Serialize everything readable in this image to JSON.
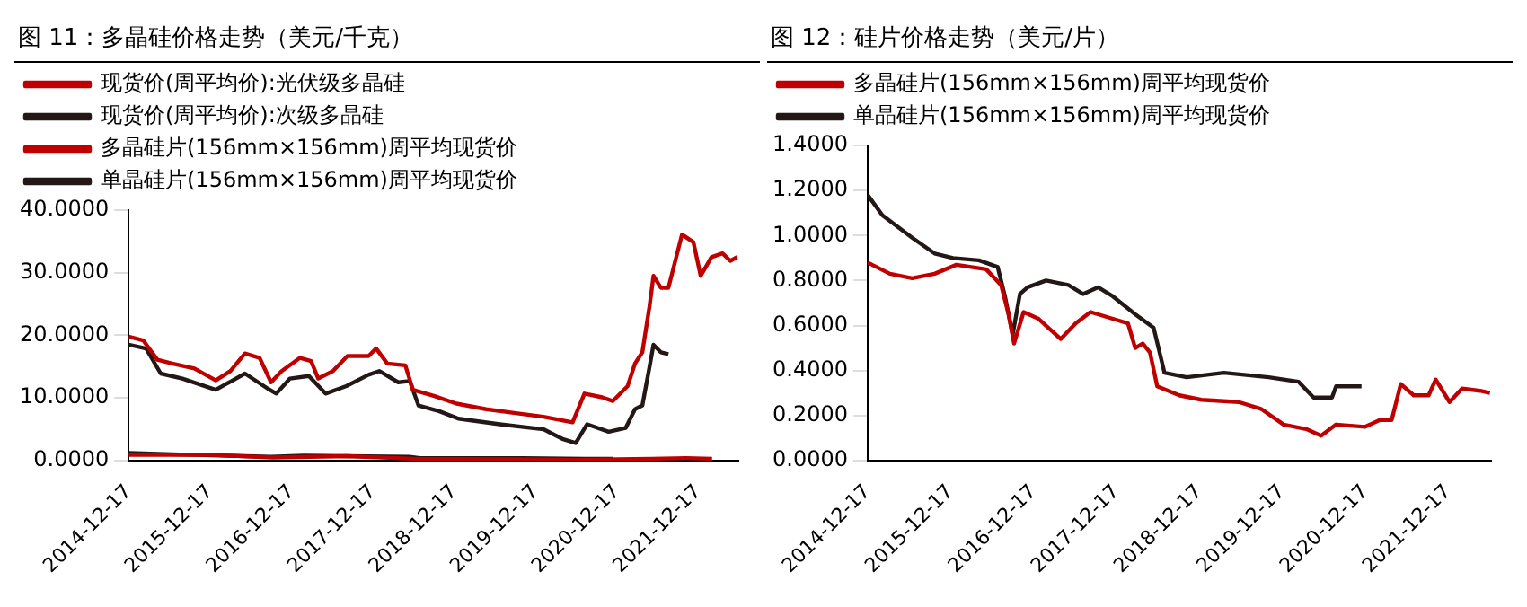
{
  "chart_data": [
    {
      "type": "line",
      "title": "图 11：多晶硅价格走势（美元/千克）",
      "legend": "top",
      "grid": false,
      "marker": "none",
      "line_style": "solid",
      "xlim": [
        "2014-12-17",
        "2022-06-15"
      ],
      "xticks": [
        "2014-12-17",
        "2015-12-17",
        "2016-12-17",
        "2017-12-17",
        "2018-12-17",
        "2019-12-17",
        "2020-12-17",
        "2021-12-17"
      ],
      "ylim": [
        0,
        40
      ],
      "yticks": [
        {
          "value": 0,
          "label": "0.0000"
        },
        {
          "value": 10,
          "label": "10.0000"
        },
        {
          "value": 20,
          "label": "20.0000"
        },
        {
          "value": 30,
          "label": "30.0000"
        },
        {
          "value": 40,
          "label": "40.0000"
        }
      ],
      "series": [
        {
          "name": "现货价(周平均价):光伏级多晶硅",
          "color": "#c00000",
          "x": [
            "2014-12-17",
            "2015-02-20",
            "2015-04-25",
            "2015-07-01",
            "2015-10-08",
            "2016-01-12",
            "2016-03-18",
            "2016-05-22",
            "2016-07-27",
            "2016-09-16",
            "2016-11-03",
            "2017-01-24",
            "2017-03-15",
            "2017-04-16",
            "2017-06-21",
            "2017-08-25",
            "2017-11-28",
            "2018-01-01",
            "2018-02-20",
            "2018-05-12",
            "2018-06-15",
            "2018-09-20",
            "2018-12-27",
            "2019-05-10",
            "2019-09-12",
            "2020-01-22",
            "2020-06-01",
            "2020-07-24",
            "2020-10-12",
            "2020-11-28",
            "2021-02-03",
            "2021-03-08",
            "2021-04-10",
            "2021-05-12",
            "2021-05-30",
            "2021-07-02",
            "2021-08-05",
            "2021-10-05",
            "2021-11-25",
            "2021-12-28",
            "2022-02-14",
            "2022-04-05",
            "2022-05-10",
            "2022-06-10"
          ],
          "values": [
            19.8,
            19.2,
            16.1,
            15.5,
            14.7,
            12.8,
            14.3,
            17.1,
            16.4,
            12.5,
            14.3,
            16.4,
            15.9,
            13.1,
            14.3,
            16.7,
            16.7,
            17.9,
            15.5,
            15.2,
            11.3,
            10.3,
            9.1,
            8.2,
            7.6,
            7.0,
            6.1,
            10.7,
            10.1,
            9.5,
            11.9,
            15.5,
            17.3,
            24.6,
            29.5,
            27.6,
            27.6,
            36.1,
            34.9,
            29.5,
            32.5,
            33.1,
            31.9,
            32.5
          ]
        },
        {
          "name": "现货价(周平均价):次级多晶硅",
          "color": "#231815",
          "x": [
            "2014-12-17",
            "2015-03-05",
            "2015-05-10",
            "2015-08-15",
            "2016-01-12",
            "2016-05-22",
            "2016-09-01",
            "2016-10-10",
            "2016-12-10",
            "2017-03-05",
            "2017-05-19",
            "2017-08-20",
            "2017-11-28",
            "2018-01-15",
            "2018-04-10",
            "2018-06-01",
            "2018-07-10",
            "2018-10-10",
            "2019-01-05",
            "2019-07-10",
            "2020-01-22",
            "2020-04-20",
            "2020-06-15",
            "2020-08-05",
            "2020-11-10",
            "2021-01-25",
            "2021-03-08",
            "2021-04-10",
            "2021-05-12",
            "2021-05-30",
            "2021-07-02",
            "2021-08-05"
          ],
          "values": [
            18.5,
            17.9,
            13.9,
            13.1,
            11.3,
            13.9,
            11.5,
            10.7,
            13.1,
            13.5,
            10.7,
            11.9,
            13.7,
            14.3,
            12.5,
            12.7,
            8.8,
            7.9,
            6.7,
            5.8,
            5.0,
            3.4,
            2.8,
            5.8,
            4.6,
            5.2,
            8.2,
            8.8,
            14.9,
            18.5,
            17.3,
            17.0
          ]
        },
        {
          "name": "多晶硅片(156mm×156mm)周平均现货价",
          "color": "#c00000",
          "x": [
            "2014-12-17",
            "2015-12-28",
            "2016-09-22",
            "2017-08-25",
            "2018-06-15",
            "2019-09-15",
            "2020-06-06",
            "2020-12-17",
            "2021-05-23",
            "2021-10-24",
            "2022-02-17"
          ],
          "values": [
            0.9,
            0.9,
            0.5,
            0.7,
            0.3,
            0.2,
            0.1,
            0.2,
            0.3,
            0.4,
            0.3
          ]
        },
        {
          "name": "单晶硅片(156mm×156mm)周平均现货价",
          "color": "#231815",
          "x": [
            "2014-12-17",
            "2015-10-08",
            "2016-09-16",
            "2017-02-10",
            "2018-05-30",
            "2018-07-17",
            "2019-10-19",
            "2020-07-24",
            "2020-12-01"
          ],
          "values": [
            1.2,
            0.9,
            0.6,
            0.8,
            0.6,
            0.4,
            0.4,
            0.3,
            0.3
          ]
        }
      ]
    },
    {
      "type": "line",
      "title": "图 12：硅片价格走势（美元/片）",
      "legend": "top",
      "grid": false,
      "marker": "none",
      "line_style": "solid",
      "xlim": [
        "2014-12-17",
        "2022-06-25"
      ],
      "xticks": [
        "2014-12-17",
        "2015-12-17",
        "2016-12-17",
        "2017-12-17",
        "2018-12-17",
        "2019-12-17",
        "2020-12-17",
        "2021-12-17"
      ],
      "ylim": [
        0,
        1.4
      ],
      "yticks": [
        {
          "value": 0,
          "label": "0.0000"
        },
        {
          "value": 0.2,
          "label": "0.2000"
        },
        {
          "value": 0.4,
          "label": "0.4000"
        },
        {
          "value": 0.6,
          "label": "0.6000"
        },
        {
          "value": 0.8,
          "label": "0.8000"
        },
        {
          "value": 1.0,
          "label": "1.0000"
        },
        {
          "value": 1.2,
          "label": "1.2000"
        },
        {
          "value": 1.4,
          "label": "1.4000"
        }
      ],
      "series": [
        {
          "name": "多晶硅片(156mm×156mm)周平均现货价",
          "color": "#c00000",
          "x": [
            "2014-12-17",
            "2015-03-25",
            "2015-07-01",
            "2015-10-08",
            "2016-01-12",
            "2016-05-22",
            "2016-07-27",
            "2016-08-29",
            "2016-09-22",
            "2016-11-03",
            "2017-01-08",
            "2017-04-16",
            "2017-06-21",
            "2017-08-25",
            "2017-12-01",
            "2018-02-06",
            "2018-03-10",
            "2018-04-12",
            "2018-05-14",
            "2018-06-15",
            "2018-09-20",
            "2018-12-27",
            "2019-06-09",
            "2019-09-15",
            "2019-12-24",
            "2020-04-01",
            "2020-06-06",
            "2020-08-11",
            "2020-12-17",
            "2021-02-20",
            "2021-04-13",
            "2021-05-23",
            "2021-07-19",
            "2021-09-23",
            "2021-10-24",
            "2021-12-24",
            "2022-02-17",
            "2022-05-08",
            "2022-06-20"
          ],
          "values": [
            0.88,
            0.83,
            0.81,
            0.83,
            0.87,
            0.85,
            0.78,
            0.65,
            0.52,
            0.66,
            0.63,
            0.54,
            0.61,
            0.66,
            0.63,
            0.61,
            0.5,
            0.52,
            0.48,
            0.33,
            0.29,
            0.27,
            0.26,
            0.23,
            0.16,
            0.14,
            0.11,
            0.16,
            0.15,
            0.18,
            0.18,
            0.34,
            0.29,
            0.29,
            0.36,
            0.26,
            0.32,
            0.31,
            0.3
          ]
        },
        {
          "name": "单晶硅片(156mm×156mm)周平均现货价",
          "color": "#231815",
          "x": [
            "2014-12-17",
            "2015-02-20",
            "2015-07-01",
            "2015-10-08",
            "2015-12-28",
            "2016-04-20",
            "2016-07-12",
            "2016-08-13",
            "2016-09-16",
            "2016-10-18",
            "2016-11-21",
            "2017-02-10",
            "2017-05-19",
            "2017-07-23",
            "2017-09-27",
            "2017-12-01",
            "2018-03-10",
            "2018-05-30",
            "2018-07-17",
            "2018-10-23",
            "2019-04-05",
            "2019-10-19",
            "2020-02-28",
            "2020-05-04",
            "2020-07-24",
            "2020-08-11",
            "2020-12-01"
          ],
          "values": [
            1.18,
            1.09,
            0.99,
            0.92,
            0.9,
            0.89,
            0.86,
            0.73,
            0.56,
            0.74,
            0.77,
            0.8,
            0.78,
            0.74,
            0.77,
            0.73,
            0.65,
            0.59,
            0.39,
            0.37,
            0.39,
            0.37,
            0.35,
            0.28,
            0.28,
            0.33,
            0.33
          ]
        }
      ]
    }
  ]
}
